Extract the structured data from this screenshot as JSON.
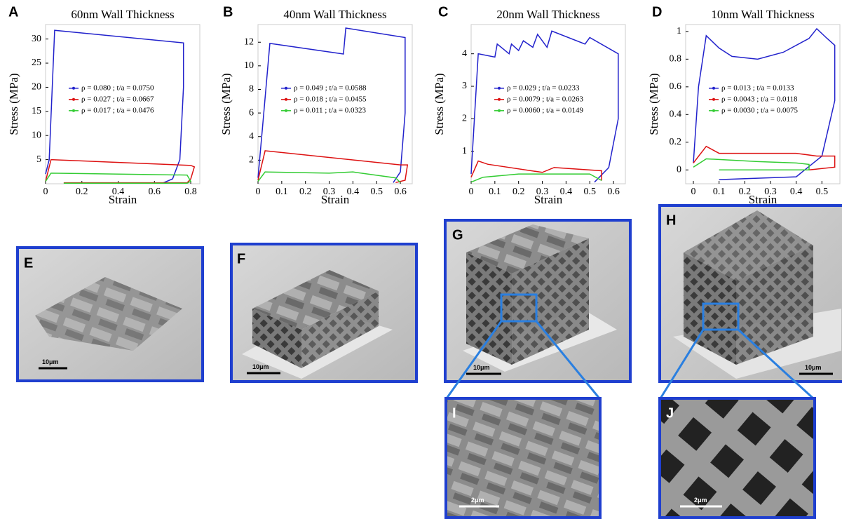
{
  "chart_data": [
    {
      "type": "line",
      "panel": "A",
      "title": "60nm Wall Thickness",
      "x_label": "Strain",
      "y_label": "Stress (MPa)",
      "xlim": [
        0,
        0.85
      ],
      "ylim": [
        0,
        33
      ],
      "xticks": [
        0,
        0.2,
        0.4,
        0.6,
        0.8
      ],
      "yticks": [
        5,
        10,
        15,
        20,
        25,
        30
      ],
      "series": [
        {
          "name": "ρ = 0.080 ; t/a = 0.0750",
          "color": "#2222cc",
          "x": [
            0,
            0.02,
            0.05,
            0.76,
            0.76,
            0.74,
            0.7,
            0.65
          ],
          "values": [
            2,
            5,
            31.8,
            29.2,
            20,
            5,
            1,
            0.2
          ]
        },
        {
          "name": "ρ = 0.027 ; t/a = 0.0667",
          "color": "#dd1111",
          "x": [
            0,
            0.03,
            0.8,
            0.82,
            0.8,
            0.78,
            0.1
          ],
          "values": [
            0.5,
            5,
            3.8,
            3.5,
            1,
            0.2,
            0.2
          ]
        },
        {
          "name": "ρ = 0.017 ; t/a = 0.0476",
          "color": "#33cc33",
          "x": [
            0,
            0.03,
            0.78,
            0.8,
            0.78,
            0.1
          ],
          "values": [
            0.5,
            2.2,
            1.8,
            0.5,
            0.1,
            0.1
          ]
        }
      ]
    },
    {
      "type": "line",
      "panel": "B",
      "title": "40nm Wall Thickness",
      "x_label": "Strain",
      "y_label": "Stress (MPa)",
      "xlim": [
        0,
        0.65
      ],
      "ylim": [
        0,
        13.5
      ],
      "xticks": [
        0,
        0.1,
        0.2,
        0.3,
        0.4,
        0.5,
        0.6
      ],
      "yticks": [
        2,
        4,
        6,
        8,
        10,
        12
      ],
      "series": [
        {
          "name": "ρ = 0.049 ; t/a = 0.0588",
          "color": "#2222cc",
          "x": [
            0,
            0.02,
            0.05,
            0.36,
            0.37,
            0.62,
            0.62,
            0.6,
            0.57
          ],
          "values": [
            0.5,
            5,
            11.9,
            11,
            13.2,
            12.4,
            6,
            1,
            0.1
          ]
        },
        {
          "name": "ρ = 0.018 ; t/a = 0.0455",
          "color": "#dd1111",
          "x": [
            0,
            0.03,
            0.6,
            0.63,
            0.62,
            0.58
          ],
          "values": [
            0.3,
            2.8,
            1.6,
            1.6,
            0.3,
            0.1
          ]
        },
        {
          "name": "ρ = 0.011 ; t/a = 0.0323",
          "color": "#33cc33",
          "x": [
            0,
            0.03,
            0.3,
            0.4,
            0.58,
            0.6
          ],
          "values": [
            0.2,
            1,
            0.9,
            1,
            0.5,
            0.1
          ]
        }
      ]
    },
    {
      "type": "line",
      "panel": "C",
      "title": "20nm Wall Thickness",
      "x_label": "Strain",
      "y_label": "Stress (MPa)",
      "xlim": [
        0,
        0.65
      ],
      "ylim": [
        0,
        4.9
      ],
      "xticks": [
        0,
        0.1,
        0.2,
        0.3,
        0.4,
        0.5,
        0.6
      ],
      "yticks": [
        1,
        2,
        3,
        4
      ],
      "series": [
        {
          "name": "ρ = 0.029   ; t/a = 0.0233",
          "color": "#2222cc",
          "x": [
            0,
            0.03,
            0.1,
            0.11,
            0.16,
            0.17,
            0.2,
            0.22,
            0.26,
            0.28,
            0.32,
            0.34,
            0.48,
            0.5,
            0.62,
            0.62,
            0.58,
            0.52
          ],
          "values": [
            0.3,
            4,
            3.9,
            4.3,
            4,
            4.3,
            4.1,
            4.4,
            4.2,
            4.6,
            4.2,
            4.7,
            4.3,
            4.5,
            4,
            2,
            0.5,
            0.05
          ]
        },
        {
          "name": "ρ = 0.0079 ; t/a = 0.0263",
          "color": "#dd1111",
          "x": [
            0,
            0.03,
            0.07,
            0.3,
            0.35,
            0.55,
            0.55
          ],
          "values": [
            0.2,
            0.7,
            0.6,
            0.35,
            0.5,
            0.4,
            0.1
          ]
        },
        {
          "name": "ρ = 0.0060 ; t/a = 0.0149",
          "color": "#33cc33",
          "x": [
            0,
            0.05,
            0.2,
            0.5,
            0.55
          ],
          "values": [
            0.05,
            0.2,
            0.3,
            0.3,
            0.1
          ]
        }
      ]
    },
    {
      "type": "line",
      "panel": "D",
      "title": "10nm Wall Thickness",
      "x_label": "Strain",
      "y_label": "Stress (MPa)",
      "xlim": [
        -0.03,
        0.57
      ],
      "ylim": [
        -0.1,
        1.05
      ],
      "xticks": [
        0,
        0.1,
        0.2,
        0.3,
        0.4,
        0.5
      ],
      "yticks": [
        0,
        0.2,
        0.4,
        0.6,
        0.8,
        1
      ],
      "series": [
        {
          "name": "ρ = 0.013   ; t/a = 0.0133",
          "color": "#2222cc",
          "x": [
            0,
            0.02,
            0.05,
            0.1,
            0.15,
            0.25,
            0.35,
            0.45,
            0.48,
            0.52,
            0.55,
            0.55,
            0.5,
            0.4,
            0.1
          ],
          "values": [
            0.05,
            0.6,
            0.97,
            0.88,
            0.82,
            0.8,
            0.85,
            0.95,
            1.02,
            0.95,
            0.9,
            0.5,
            0.1,
            -0.05,
            -0.07
          ]
        },
        {
          "name": "ρ = 0.0043 ; t/a = 0.0118",
          "color": "#dd1111",
          "x": [
            0,
            0.05,
            0.1,
            0.4,
            0.48,
            0.55,
            0.55,
            0.45
          ],
          "values": [
            0.05,
            0.17,
            0.12,
            0.12,
            0.1,
            0.1,
            0.02,
            0
          ]
        },
        {
          "name": "ρ = 0.0030 ; t/a = 0.0075",
          "color": "#33cc33",
          "x": [
            0,
            0.05,
            0.25,
            0.4,
            0.45,
            0.45,
            0.1
          ],
          "values": [
            0.02,
            0.08,
            0.06,
            0.05,
            0.04,
            0,
            0
          ]
        }
      ]
    }
  ],
  "micrographs": [
    {
      "panel": "E",
      "scale_bar": "10μm"
    },
    {
      "panel": "F",
      "scale_bar": "10μm"
    },
    {
      "panel": "G",
      "scale_bar": "10μm"
    },
    {
      "panel": "H",
      "scale_bar": "10μm"
    },
    {
      "panel": "I",
      "scale_bar": "2μm"
    },
    {
      "panel": "J",
      "scale_bar": "2μm"
    }
  ]
}
